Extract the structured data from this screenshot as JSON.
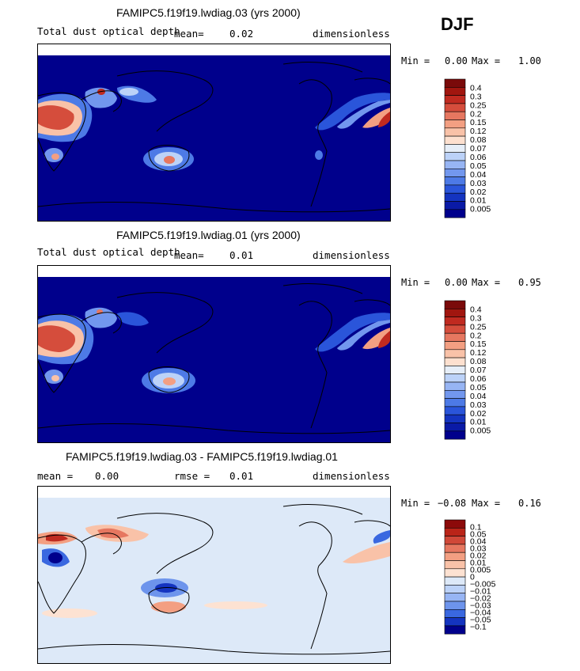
{
  "season": "DJF",
  "colors": {
    "dust": [
      "#00008c",
      "#0a1aa6",
      "#1434c0",
      "#2a55da",
      "#4d7ae6",
      "#7297ee",
      "#97b5f4",
      "#bcd2f8",
      "#e6eef8",
      "#fde0cf",
      "#f9c2a8",
      "#f39f82",
      "#e67760",
      "#d54d3c",
      "#c02a20",
      "#a1160f",
      "#7a0a0a"
    ],
    "diff": [
      "#00008c",
      "#1434c0",
      "#3a68e0",
      "#6d94ec",
      "#97b5f4",
      "#bcd2f8",
      "#dde9f8",
      "#fde2d2",
      "#f9c2a8",
      "#f39f82",
      "#e67760",
      "#d04838",
      "#ba2418",
      "#8c0a0a"
    ]
  },
  "panels": [
    {
      "title": "FAMIPC5.f19f19.lwdiag.03 (yrs 2000)",
      "subtitle_left": "Total dust optical depth",
      "mean_text": "mean=",
      "mean_value": "0.02",
      "units": "dimensionless",
      "min_label": "Min =",
      "min_value": "0.00",
      "max_label": "Max =",
      "max_value": "1.00"
    },
    {
      "title": "FAMIPC5.f19f19.lwdiag.01 (yrs 2000)",
      "subtitle_left": "Total dust optical depth",
      "mean_text": "mean=",
      "mean_value": "0.01",
      "units": "dimensionless",
      "min_label": "Min =",
      "min_value": "0.00",
      "max_label": "Max =",
      "max_value": "0.95"
    },
    {
      "title": "FAMIPC5.f19f19.lwdiag.03 - FAMIPC5.f19f19.lwdiag.01",
      "subtitle_left": "mean =",
      "mean_value": "0.00",
      "rmse_text": "rmse =",
      "rmse_value": "0.01",
      "units": "dimensionless",
      "min_label": "Min =",
      "min_value": "−0.08",
      "max_label": "Max =",
      "max_value": "0.16"
    }
  ],
  "chart_data": [
    {
      "type": "heatmap",
      "title": "FAMIPC5.f19f19.lwdiag.03 (yrs 2000)",
      "variable": "Total dust optical depth",
      "units": "dimensionless",
      "mean": 0.02,
      "min": 0.0,
      "max": 1.0,
      "colorbar_levels": [
        "0.4",
        "0.3",
        "0.25",
        "0.2",
        "0.15",
        "0.12",
        "0.08",
        "0.07",
        "0.06",
        "0.05",
        "0.04",
        "0.03",
        "0.02",
        "0.01",
        "0.005"
      ]
    },
    {
      "type": "heatmap",
      "title": "FAMIPC5.f19f19.lwdiag.01 (yrs 2000)",
      "variable": "Total dust optical depth",
      "units": "dimensionless",
      "mean": 0.01,
      "min": 0.0,
      "max": 0.95,
      "colorbar_levels": [
        "0.4",
        "0.3",
        "0.25",
        "0.2",
        "0.15",
        "0.12",
        "0.08",
        "0.07",
        "0.06",
        "0.05",
        "0.04",
        "0.03",
        "0.02",
        "0.01",
        "0.005"
      ]
    },
    {
      "type": "heatmap",
      "title": "FAMIPC5.f19f19.lwdiag.03 - FAMIPC5.f19f19.lwdiag.01",
      "units": "dimensionless",
      "mean": 0.0,
      "rmse": 0.01,
      "min": -0.08,
      "max": 0.16,
      "colorbar_levels": [
        "0.1",
        "0.05",
        "0.04",
        "0.03",
        "0.02",
        "0.01",
        "0.005",
        "0",
        "−0.005",
        "−0.01",
        "−0.02",
        "−0.03",
        "−0.04",
        "−0.05",
        "−0.1"
      ]
    }
  ]
}
